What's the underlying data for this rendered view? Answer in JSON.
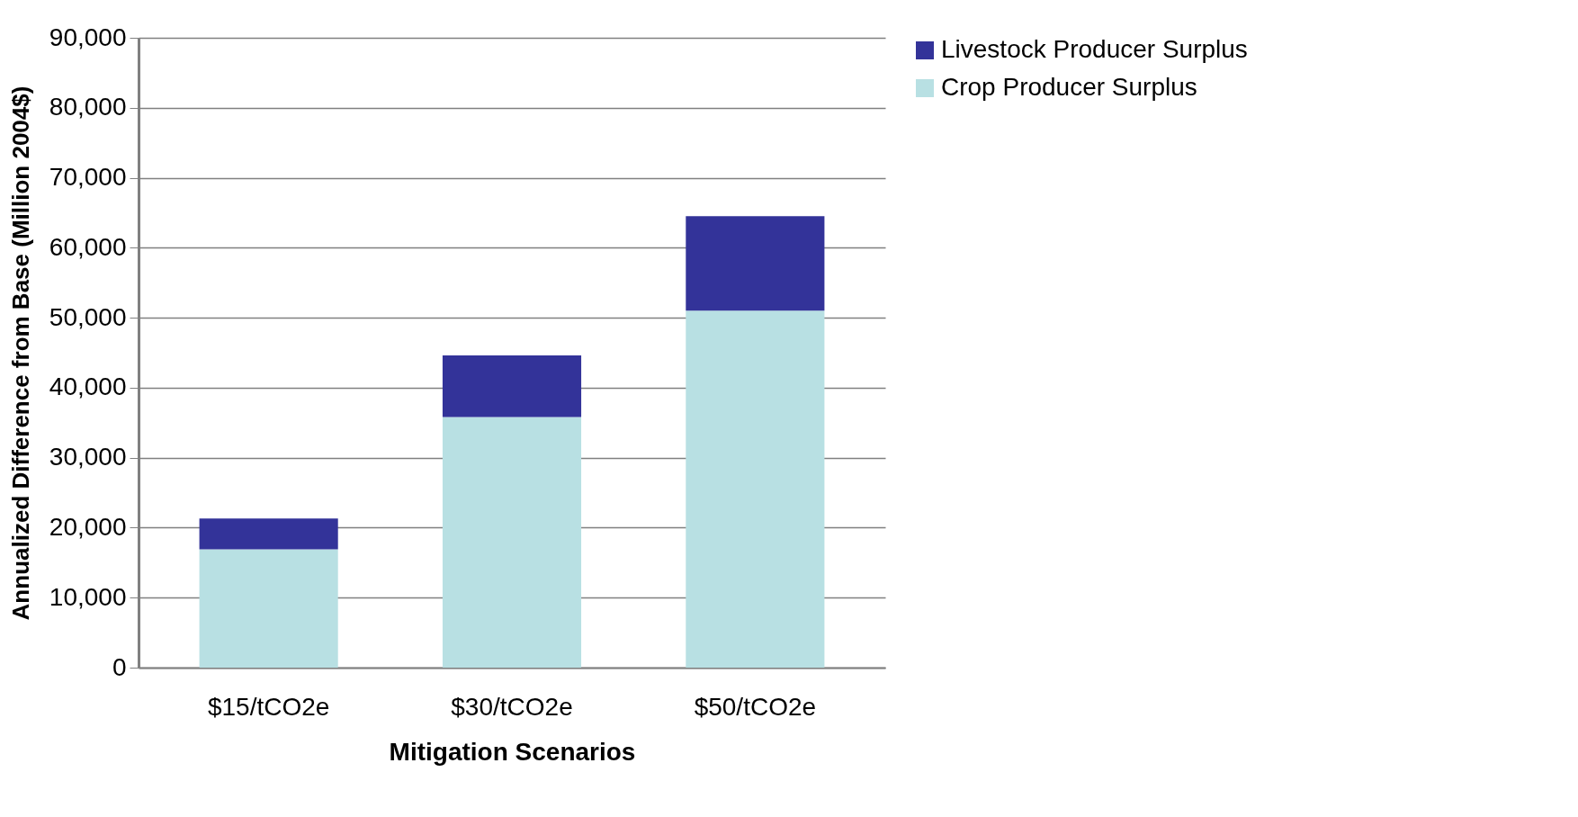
{
  "chart_data": {
    "type": "bar",
    "stacked": true,
    "xlabel": "Mitigation Scenarios",
    "ylabel": "Annualized Difference from Base (Million 2004$)",
    "categories": [
      "$15/tCO2e",
      "$30/tCO2e",
      "$50/tCO2e"
    ],
    "series": [
      {
        "name": "Crop Producer Surplus",
        "color": "#b8e0e3",
        "values": [
          16900,
          35800,
          51000
        ]
      },
      {
        "name": "Livestock Producer Surplus",
        "color": "#333399",
        "values": [
          4400,
          8800,
          13500
        ]
      }
    ],
    "ylim": [
      0,
      90000
    ],
    "yticks": [
      0,
      {
        "value": 10000,
        "label": "10,000"
      },
      {
        "value": 20000,
        "label": "20,000"
      },
      {
        "value": 30000,
        "label": "30,000"
      },
      {
        "value": 40000,
        "label": "40,000"
      },
      {
        "value": 50000,
        "label": "50,000"
      },
      {
        "value": 60000,
        "label": "60,000"
      },
      {
        "value": 70000,
        "label": "70,000"
      },
      {
        "value": 80000,
        "label": "80,000"
      },
      {
        "value": 90000,
        "label": "90,000"
      }
    ],
    "grid": "y",
    "legend": "right"
  }
}
